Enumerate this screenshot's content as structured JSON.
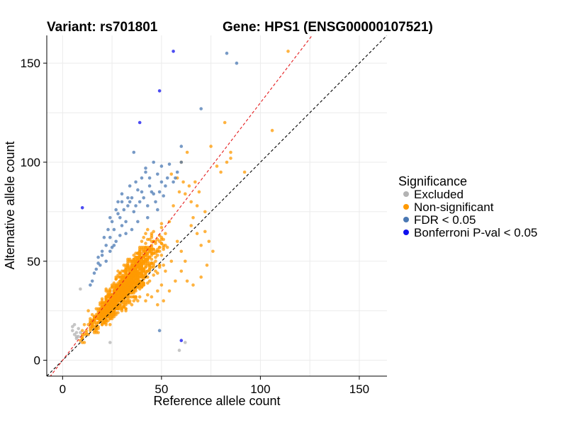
{
  "chart_data": {
    "type": "scatter",
    "title_left": "Variant: rs701801",
    "title_right": "Gene: HPS1 (ENSG00000107521)",
    "xlabel": "Reference allele count",
    "ylabel": "Alternative allele count",
    "xlim": [
      -8,
      164
    ],
    "ylim": [
      -8,
      164
    ],
    "xticks": [
      0,
      50,
      100,
      150
    ],
    "yticks": [
      0,
      50,
      100,
      150
    ],
    "x_tick_labels": [
      "0",
      "50",
      "100",
      "150"
    ],
    "y_tick_labels": [
      "0",
      "50",
      "100",
      "150"
    ],
    "grid": true,
    "reference_lines": [
      {
        "name": "identity",
        "slope": 1.0,
        "intercept": 0,
        "color": "#000000",
        "dash": "dashed"
      },
      {
        "name": "fit",
        "slope": 1.3,
        "intercept": 0,
        "color": "#e41a1c",
        "dash": "dashed"
      }
    ],
    "legend": {
      "title": "Significance",
      "position": "right",
      "entries": [
        {
          "label": "Excluded",
          "color": "#b3b3b3"
        },
        {
          "label": "Non-significant",
          "color": "#ff9900"
        },
        {
          "label": "FDR < 0.05",
          "color": "#4a78b3"
        },
        {
          "label": "Bonferroni P-val < 0.05",
          "color": "#1010ee"
        }
      ]
    },
    "series": [
      {
        "name": "Excluded",
        "color": "#b3b3b3",
        "points": [
          [
            5,
            15
          ],
          [
            6,
            13
          ],
          [
            7,
            12
          ],
          [
            6,
            18
          ],
          [
            8,
            16
          ],
          [
            7,
            11
          ],
          [
            9,
            14
          ],
          [
            8,
            12
          ],
          [
            24,
            9
          ],
          [
            59,
            5
          ],
          [
            62,
            9
          ],
          [
            9,
            36
          ],
          [
            5,
            17
          ],
          [
            7,
            14
          ]
        ]
      },
      {
        "name": "Non-significant",
        "color": "#ff9900",
        "cloud": {
          "count": 1500,
          "x_mean": 31,
          "x_sd": 7.5,
          "ratio_mean": 1.18,
          "ratio_sd": 0.13,
          "x_min": 9,
          "x_max": 75
        },
        "points": [
          [
            114,
            156
          ],
          [
            82,
            120
          ],
          [
            106,
            116
          ],
          [
            75,
            108
          ],
          [
            85,
            102
          ],
          [
            92,
            95
          ],
          [
            78,
            98
          ],
          [
            85,
            105
          ],
          [
            83,
            100
          ],
          [
            80,
            95
          ],
          [
            67,
            90
          ],
          [
            69,
            85
          ],
          [
            65,
            80
          ],
          [
            72,
            75
          ],
          [
            66,
            72
          ],
          [
            74,
            60
          ],
          [
            73,
            48
          ],
          [
            70,
            42
          ],
          [
            76,
            55
          ],
          [
            64,
            88
          ],
          [
            68,
            78
          ],
          [
            62,
            84
          ],
          [
            60,
            100
          ],
          [
            61,
            90
          ],
          [
            63,
            105
          ],
          [
            58,
            92
          ],
          [
            55,
            94
          ],
          [
            59,
            85
          ],
          [
            56,
            78
          ],
          [
            65,
            68
          ],
          [
            68,
            64
          ],
          [
            70,
            58
          ],
          [
            72,
            65
          ],
          [
            58,
            60
          ],
          [
            60,
            55
          ],
          [
            62,
            50
          ],
          [
            55,
            50
          ],
          [
            52,
            45
          ],
          [
            57,
            40
          ],
          [
            50,
            38
          ],
          [
            48,
            35
          ],
          [
            45,
            32
          ],
          [
            42,
            30
          ],
          [
            60,
            45
          ],
          [
            63,
            40
          ],
          [
            66,
            38
          ],
          [
            54,
            35
          ],
          [
            51,
            30
          ],
          [
            48,
            28
          ],
          [
            12,
            15
          ],
          [
            14,
            20
          ],
          [
            13,
            25
          ],
          [
            15,
            18
          ],
          [
            16,
            22
          ],
          [
            18,
            14
          ],
          [
            20,
            18
          ],
          [
            22,
            20
          ],
          [
            25,
            22
          ],
          [
            30,
            26
          ],
          [
            35,
            28
          ],
          [
            38,
            30
          ],
          [
            11,
            18
          ],
          [
            10,
            12
          ]
        ]
      },
      {
        "name": "FDR < 0.05",
        "color": "#4a78b3",
        "points": [
          [
            83,
            155
          ],
          [
            88,
            150
          ],
          [
            70,
            127
          ],
          [
            36,
            105
          ],
          [
            60,
            108
          ],
          [
            42,
            97
          ],
          [
            44,
            92
          ],
          [
            48,
            94
          ],
          [
            50,
            90
          ],
          [
            52,
            88
          ],
          [
            40,
            85
          ],
          [
            35,
            82
          ],
          [
            38,
            86
          ],
          [
            44,
            88
          ],
          [
            46,
            84
          ],
          [
            30,
            84
          ],
          [
            28,
            80
          ],
          [
            33,
            78
          ],
          [
            36,
            75
          ],
          [
            32,
            70
          ],
          [
            30,
            68
          ],
          [
            28,
            74
          ],
          [
            26,
            66
          ],
          [
            24,
            62
          ],
          [
            27,
            60
          ],
          [
            25,
            57
          ],
          [
            22,
            58
          ],
          [
            20,
            55
          ],
          [
            18,
            52
          ],
          [
            22,
            50
          ],
          [
            19,
            48
          ],
          [
            17,
            46
          ],
          [
            16,
            44
          ],
          [
            15,
            40
          ],
          [
            14,
            38
          ],
          [
            21,
            62
          ],
          [
            23,
            66
          ],
          [
            25,
            70
          ],
          [
            29,
            72
          ],
          [
            31,
            76
          ],
          [
            34,
            80
          ],
          [
            37,
            78
          ],
          [
            39,
            80
          ],
          [
            41,
            82
          ],
          [
            43,
            78
          ],
          [
            45,
            85
          ],
          [
            47,
            80
          ],
          [
            49,
            85
          ],
          [
            51,
            83
          ],
          [
            48,
            76
          ],
          [
            43,
            72
          ],
          [
            38,
            70
          ],
          [
            35,
            66
          ],
          [
            32,
            64
          ],
          [
            29,
            63
          ],
          [
            26,
            58
          ],
          [
            24,
            55
          ],
          [
            20,
            53
          ],
          [
            18,
            49
          ],
          [
            56,
            90
          ],
          [
            58,
            95
          ],
          [
            54,
            99
          ],
          [
            50,
            98
          ],
          [
            46,
            100
          ],
          [
            42,
            95
          ],
          [
            40,
            92
          ],
          [
            37,
            90
          ],
          [
            34,
            88
          ],
          [
            60,
            100
          ],
          [
            57,
            92
          ],
          [
            53,
            92
          ],
          [
            49,
            15
          ],
          [
            24,
            72
          ],
          [
            27,
            76
          ],
          [
            30,
            80
          ],
          [
            33,
            82
          ]
        ]
      },
      {
        "name": "Bonferroni P-val < 0.05",
        "color": "#1010ee",
        "points": [
          [
            56,
            156
          ],
          [
            49,
            136
          ],
          [
            39,
            120
          ],
          [
            10,
            77
          ],
          [
            60,
            10
          ]
        ]
      }
    ]
  }
}
